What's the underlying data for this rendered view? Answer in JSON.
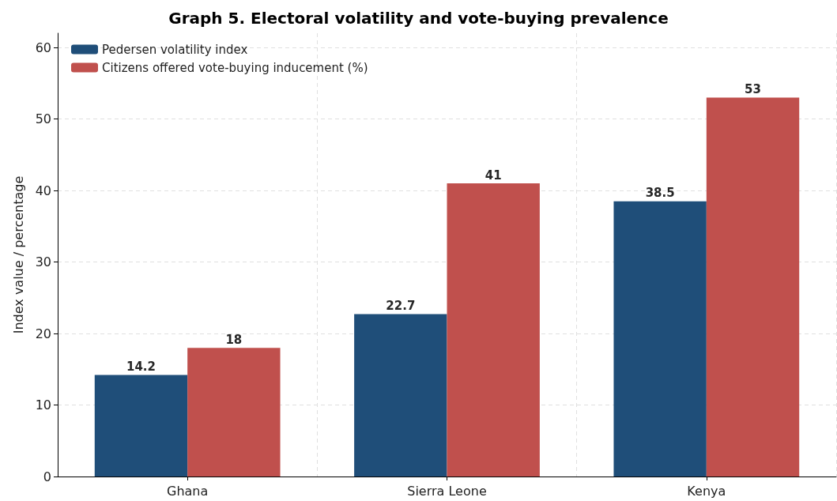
{
  "chart_data": {
    "type": "bar",
    "title": "Graph 5. Electoral volatility and vote-buying prevalence",
    "ylabel": "Index value / percentage",
    "categories": [
      "Ghana",
      "Sierra Leone",
      "Kenya"
    ],
    "series": [
      {
        "name": "Pedersen volatility index",
        "color": "#1f4e79",
        "values": [
          14.2,
          22.7,
          38.5
        ]
      },
      {
        "name": "Citizens offered vote-buying inducement (%)",
        "color": "#c0504d",
        "values": [
          18,
          41,
          53
        ]
      }
    ],
    "ylim": [
      0,
      62
    ],
    "yticks": [
      0,
      10,
      20,
      30,
      40,
      50,
      60
    ],
    "grid": true,
    "legend": "top left",
    "data_labels": true
  }
}
